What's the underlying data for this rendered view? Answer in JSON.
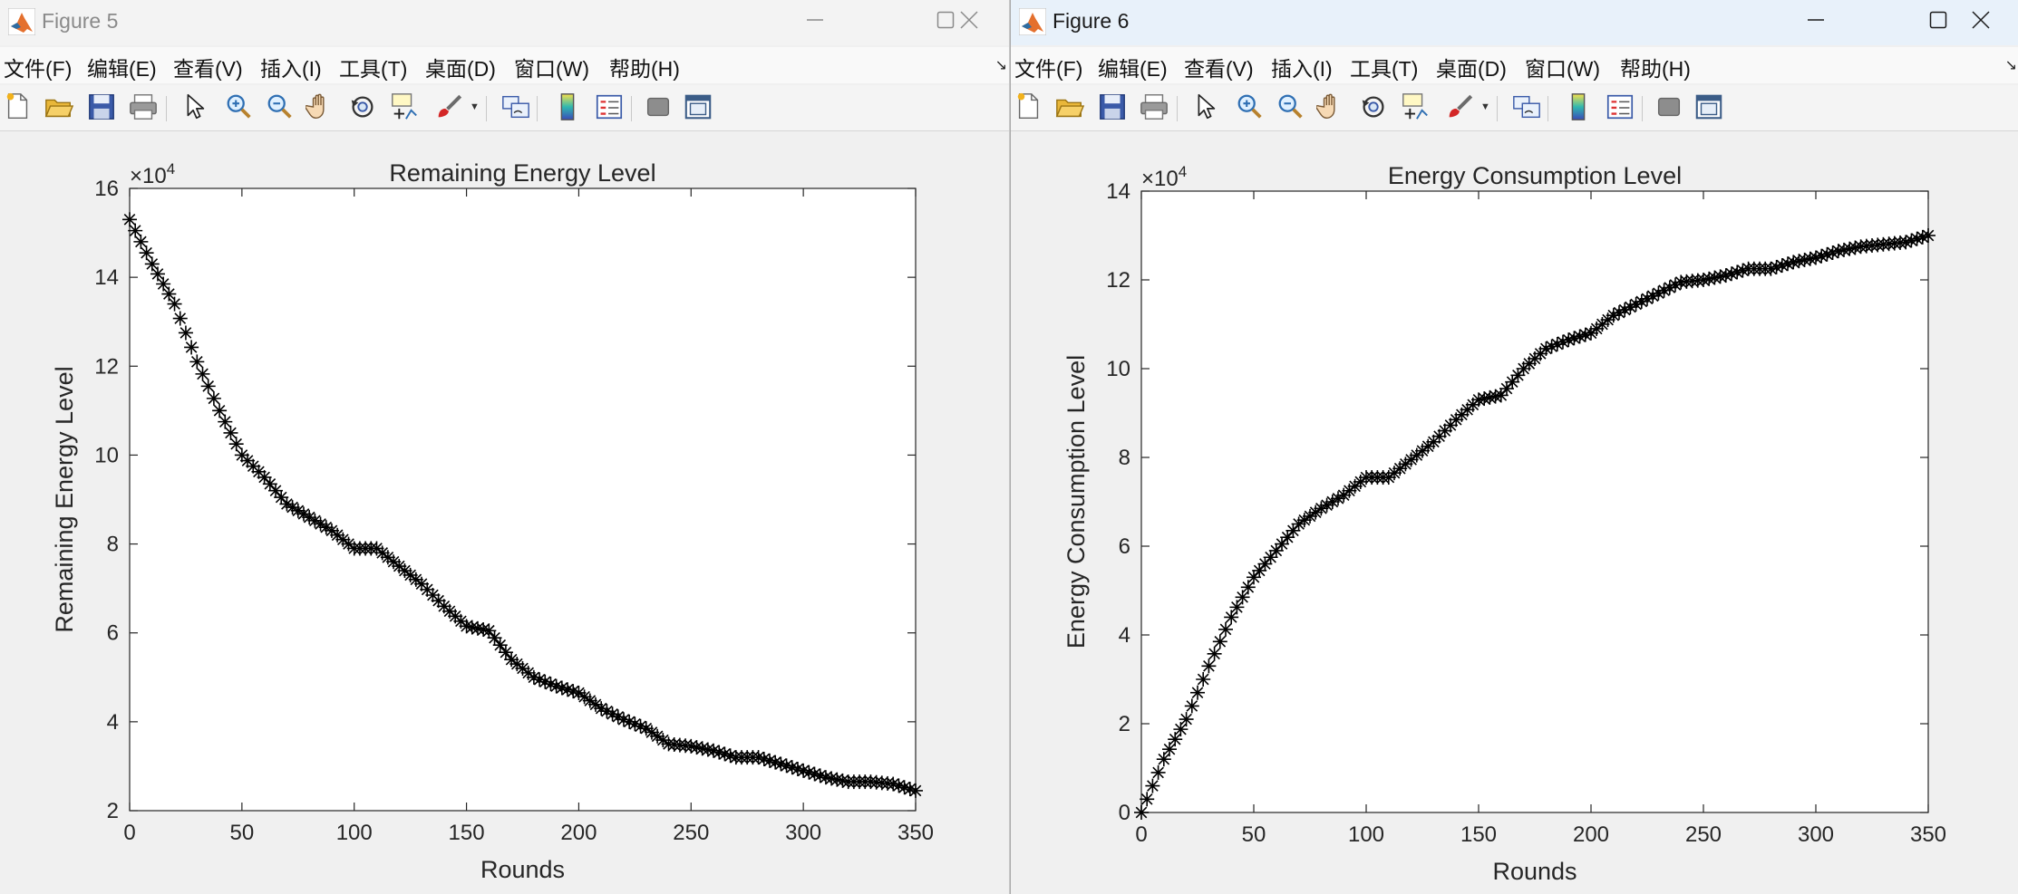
{
  "windows": [
    {
      "title": "Figure 5",
      "menu": [
        "文件(F)",
        "编辑(E)",
        "查看(V)",
        "插入(I)",
        "工具(T)",
        "桌面(D)",
        "窗口(W)",
        "帮助(H)"
      ],
      "accent": "#8a8a8a"
    },
    {
      "title": "Figure 6",
      "menu": [
        "文件(F)",
        "编辑(E)",
        "查看(V)",
        "插入(I)",
        "工具(T)",
        "桌面(D)",
        "窗口(W)",
        "帮助(H)"
      ],
      "accent": "#1b1b1b"
    }
  ],
  "toolbar_icons": [
    "new-figure-icon",
    "open-file-icon",
    "save-icon",
    "print-icon",
    "select-pointer-icon",
    "zoom-in-icon",
    "zoom-out-icon",
    "pan-hand-icon",
    "rotate-3d-icon",
    "data-cursor-icon",
    "brush-icon",
    "link-plot-icon",
    "colorbar-icon",
    "legend-icon",
    "hide-plot-tools-icon",
    "show-plot-tools-icon"
  ],
  "chart_data": [
    {
      "type": "scatter",
      "marker": "*",
      "color": "#000000",
      "title": "Remaining Energy Level",
      "xlabel": "Rounds",
      "ylabel": "Remaining Energy Level",
      "exponent_label": "×10",
      "exponent_power": "4",
      "xlim": [
        0,
        350
      ],
      "ylim": [
        20000,
        160000
      ],
      "xticks": [
        0,
        50,
        100,
        150,
        200,
        250,
        300,
        350
      ],
      "yticks": [
        20000,
        40000,
        60000,
        80000,
        100000,
        120000,
        140000,
        160000
      ],
      "ytick_labels": [
        "2",
        "4",
        "6",
        "8",
        "10",
        "12",
        "14",
        "16"
      ],
      "x": [
        0,
        10,
        20,
        30,
        40,
        50,
        60,
        70,
        80,
        90,
        100,
        110,
        120,
        130,
        140,
        150,
        160,
        170,
        180,
        190,
        200,
        210,
        220,
        230,
        240,
        250,
        260,
        270,
        280,
        290,
        300,
        310,
        320,
        330,
        340,
        350
      ],
      "y": [
        153000,
        143000,
        134000,
        121000,
        110000,
        100000,
        95000,
        89000,
        86000,
        83000,
        79000,
        79000,
        75000,
        71000,
        66000,
        61500,
        60500,
        54000,
        50000,
        48000,
        46500,
        43000,
        40500,
        38500,
        35000,
        34500,
        33500,
        32000,
        32000,
        30500,
        29000,
        27500,
        26500,
        26500,
        26000,
        24500
      ]
    },
    {
      "type": "scatter",
      "marker": "*",
      "color": "#000000",
      "title": "Energy Consumption Level",
      "xlabel": "Rounds",
      "ylabel": "Energy Consumption Level",
      "exponent_label": "×10",
      "exponent_power": "4",
      "xlim": [
        0,
        350
      ],
      "ylim": [
        0,
        140000
      ],
      "xticks": [
        0,
        50,
        100,
        150,
        200,
        250,
        300,
        350
      ],
      "yticks": [
        0,
        20000,
        40000,
        60000,
        80000,
        100000,
        120000,
        140000
      ],
      "ytick_labels": [
        "0",
        "2",
        "4",
        "6",
        "8",
        "10",
        "12",
        "14"
      ],
      "x": [
        0,
        10,
        20,
        30,
        40,
        50,
        60,
        70,
        80,
        90,
        100,
        110,
        120,
        130,
        140,
        150,
        160,
        170,
        180,
        190,
        200,
        210,
        220,
        230,
        240,
        250,
        260,
        270,
        280,
        290,
        300,
        310,
        320,
        330,
        340,
        350
      ],
      "y": [
        0,
        12000,
        21000,
        33000,
        44000,
        53000,
        59000,
        65000,
        68500,
        71500,
        75500,
        75500,
        79500,
        83500,
        88500,
        93000,
        94000,
        100000,
        104500,
        106500,
        108000,
        112000,
        114500,
        117000,
        119500,
        120000,
        121000,
        122500,
        122500,
        124000,
        125000,
        126500,
        127500,
        128000,
        128500,
        130000
      ]
    }
  ]
}
